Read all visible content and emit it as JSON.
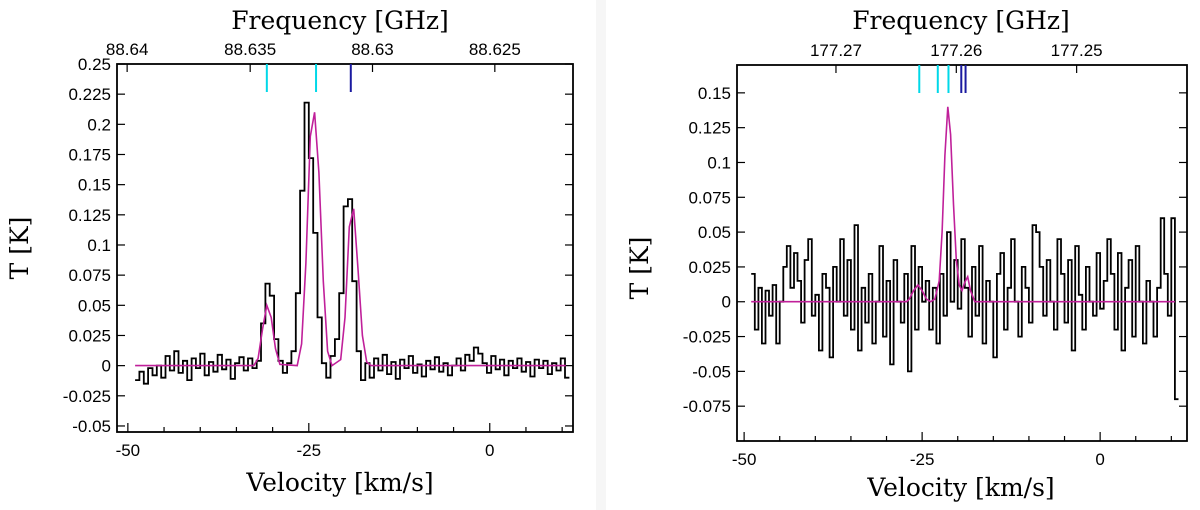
{
  "chart_data": [
    {
      "type": "line",
      "title": "",
      "xlabel": "Velocity [km/s]",
      "ylabel": "T [K]",
      "x2label": "Frequency [GHz]",
      "xlim": [
        -51.5,
        11.5
      ],
      "ylim": [
        -0.055,
        0.25
      ],
      "x_ticks": [
        -50,
        -25,
        0
      ],
      "x_tick_labels": [
        "-50",
        "-25",
        "0"
      ],
      "y_ticks": [
        -0.05,
        -0.025,
        0,
        0.025,
        0.05,
        0.075,
        0.1,
        0.125,
        0.15,
        0.175,
        0.2,
        0.225,
        0.25
      ],
      "y_tick_labels": [
        "-0.05",
        "-0.025",
        "0",
        "0.025",
        "0.05",
        "0.075",
        "0.1",
        "0.125",
        "0.15",
        "0.175",
        "0.2",
        "0.225",
        "0.25"
      ],
      "x2_ticks": [
        -50.1,
        -33.1,
        -16.2,
        0.7
      ],
      "x2_tick_labels": [
        "88.64",
        "88.635",
        "88.63",
        "88.625"
      ],
      "line_markers": [
        {
          "x": -30.8,
          "color": "#00d8e8"
        },
        {
          "x": -24.0,
          "color": "#00d8e8"
        },
        {
          "x": -19.2,
          "color": "#1a1aa0"
        }
      ],
      "series": [
        {
          "color": "#000000",
          "style": "steps",
          "x": [
            -49.0,
            -48.4,
            -47.8,
            -47.2,
            -46.6,
            -46.0,
            -45.4,
            -44.8,
            -44.2,
            -43.6,
            -43.0,
            -42.4,
            -41.8,
            -41.2,
            -40.6,
            -40.0,
            -39.4,
            -38.8,
            -38.2,
            -37.6,
            -37.0,
            -36.4,
            -35.8,
            -35.2,
            -34.6,
            -34.0,
            -33.4,
            -32.8,
            -32.2,
            -31.6,
            -31.0,
            -30.4,
            -29.8,
            -29.2,
            -28.6,
            -28.0,
            -27.4,
            -26.8,
            -26.2,
            -25.6,
            -25.0,
            -24.4,
            -23.8,
            -23.2,
            -22.6,
            -22.0,
            -21.4,
            -20.8,
            -20.2,
            -19.6,
            -19.0,
            -18.4,
            -17.8,
            -17.2,
            -16.6,
            -16.0,
            -15.4,
            -14.8,
            -14.2,
            -13.6,
            -13.0,
            -12.4,
            -11.8,
            -11.2,
            -10.6,
            -10.0,
            -9.4,
            -8.8,
            -8.2,
            -7.6,
            -7.0,
            -6.4,
            -5.8,
            -5.2,
            -4.6,
            -4.0,
            -3.4,
            -2.8,
            -2.2,
            -1.6,
            -1.0,
            -0.4,
            0.2,
            0.8,
            1.4,
            2.0,
            2.6,
            3.2,
            3.8,
            4.4,
            5.0,
            5.6,
            6.2,
            6.8,
            7.4,
            8.0,
            8.6,
            9.2,
            9.8,
            10.4
          ],
          "y": [
            -0.012,
            -0.005,
            -0.015,
            -0.002,
            -0.008,
            0.0,
            -0.01,
            0.008,
            -0.004,
            0.012,
            -0.006,
            0.004,
            -0.012,
            0.006,
            -0.002,
            0.01,
            -0.008,
            0.003,
            -0.005,
            0.009,
            -0.003,
            0.005,
            -0.011,
            0.002,
            0.007,
            -0.004,
            0.006,
            -0.002,
            0.004,
            0.035,
            0.068,
            0.058,
            0.022,
            0.004,
            -0.006,
            0.002,
            0.012,
            0.06,
            0.145,
            0.218,
            0.172,
            0.11,
            0.04,
            0.002,
            -0.01,
            0.008,
            0.022,
            0.06,
            0.132,
            0.138,
            0.07,
            0.012,
            -0.012,
            0.002,
            -0.01,
            0.006,
            -0.004,
            0.009,
            -0.007,
            0.003,
            -0.011,
            0.005,
            -0.002,
            0.008,
            -0.006,
            0.001,
            -0.009,
            0.004,
            -0.003,
            0.007,
            -0.005,
            0.002,
            -0.008,
            0.0,
            0.006,
            -0.004,
            0.009,
            0.004,
            0.015,
            0.01,
            0.002,
            -0.006,
            0.008,
            -0.003,
            0.005,
            -0.008,
            0.004,
            -0.002,
            0.006,
            -0.005,
            0.003,
            -0.009,
            0.005,
            -0.002,
            0.004,
            -0.007,
            0.002,
            -0.004,
            0.006,
            -0.01
          ]
        },
        {
          "color": "#c0209a",
          "style": "line",
          "x": [
            -49.0,
            -32.6,
            -32.0,
            -31.4,
            -30.8,
            -30.2,
            -29.6,
            -29.0,
            -26.6,
            -26.0,
            -25.4,
            -24.8,
            -24.2,
            -23.6,
            -23.0,
            -22.4,
            -21.8,
            -20.6,
            -20.0,
            -19.4,
            -18.8,
            -18.2,
            -17.6,
            -17.0,
            -16.4,
            10.5
          ],
          "y": [
            0.0,
            0.0,
            0.006,
            0.03,
            0.05,
            0.04,
            0.014,
            0.001,
            0.0,
            0.018,
            0.085,
            0.19,
            0.21,
            0.16,
            0.07,
            0.012,
            0.0,
            0.005,
            0.04,
            0.115,
            0.13,
            0.08,
            0.025,
            0.003,
            0.0,
            0.0
          ]
        }
      ]
    },
    {
      "type": "line",
      "title": "",
      "xlabel": "Velocity [km/s]",
      "ylabel": "T [K]",
      "x2label": "Frequency [GHz]",
      "xlim": [
        -51.0,
        12.2
      ],
      "ylim": [
        -0.1,
        0.17
      ],
      "x_ticks": [
        -50,
        -25,
        0
      ],
      "x_tick_labels": [
        "-50",
        "-25",
        "0"
      ],
      "y_ticks": [
        -0.075,
        -0.05,
        -0.025,
        0,
        0.025,
        0.05,
        0.075,
        0.1,
        0.125,
        0.15
      ],
      "y_tick_labels": [
        "-0.075",
        "-0.05",
        "-0.025",
        "0",
        "0.025",
        "0.05",
        "0.075",
        "0.1",
        "0.125",
        "0.15"
      ],
      "x2_ticks": [
        -37.1,
        -20.2,
        -3.3
      ],
      "x2_tick_labels": [
        "177.27",
        "177.26",
        "177.25"
      ],
      "line_markers": [
        {
          "x": -25.4,
          "color": "#00d8e8"
        },
        {
          "x": -22.8,
          "color": "#00d8e8"
        },
        {
          "x": -21.3,
          "color": "#00d8e8"
        },
        {
          "x": -19.5,
          "color": "#1a1aa0"
        },
        {
          "x": -18.9,
          "color": "#1a1aa0"
        }
      ],
      "series": [
        {
          "color": "#000000",
          "style": "steps",
          "x": [
            -49.0,
            -48.5,
            -48.0,
            -47.5,
            -47.0,
            -46.5,
            -46.0,
            -45.5,
            -45.0,
            -44.5,
            -44.0,
            -43.5,
            -43.0,
            -42.5,
            -42.0,
            -41.5,
            -41.0,
            -40.5,
            -40.0,
            -39.5,
            -39.0,
            -38.5,
            -38.0,
            -37.5,
            -37.0,
            -36.5,
            -36.0,
            -35.5,
            -35.0,
            -34.5,
            -34.0,
            -33.5,
            -33.0,
            -32.5,
            -32.0,
            -31.5,
            -31.0,
            -30.5,
            -30.0,
            -29.5,
            -29.0,
            -28.5,
            -28.0,
            -27.5,
            -27.0,
            -26.5,
            -26.0,
            -25.5,
            -25.0,
            -24.5,
            -24.0,
            -23.5,
            -23.0,
            -22.5,
            -22.0,
            -21.5,
            -21.0,
            -20.5,
            -20.0,
            -19.5,
            -19.0,
            -18.5,
            -18.0,
            -17.5,
            -17.0,
            -16.5,
            -16.0,
            -15.5,
            -15.0,
            -14.5,
            -14.0,
            -13.5,
            -13.0,
            -12.5,
            -12.0,
            -11.5,
            -11.0,
            -10.5,
            -10.0,
            -9.5,
            -9.0,
            -8.5,
            -8.0,
            -7.5,
            -7.0,
            -6.5,
            -6.0,
            -5.5,
            -5.0,
            -4.5,
            -4.0,
            -3.5,
            -3.0,
            -2.5,
            -2.0,
            -1.5,
            -1.0,
            -0.5,
            0.0,
            0.5,
            1.0,
            1.5,
            2.0,
            2.5,
            3.0,
            3.5,
            4.0,
            4.5,
            5.0,
            5.5,
            6.0,
            6.5,
            7.0,
            7.5,
            8.0,
            8.5,
            9.0,
            9.5,
            10.0,
            10.5
          ],
          "y": [
            0.02,
            -0.02,
            0.01,
            -0.03,
            0.008,
            -0.01,
            0.012,
            -0.03,
            0.0,
            0.025,
            0.04,
            0.01,
            0.035,
            0.015,
            -0.015,
            0.03,
            0.045,
            -0.01,
            0.005,
            -0.035,
            0.02,
            0.01,
            -0.04,
            0.025,
            0.0,
            0.045,
            -0.01,
            0.03,
            -0.02,
            0.055,
            -0.035,
            0.01,
            -0.015,
            0.02,
            -0.03,
            0.0,
            0.04,
            -0.025,
            0.015,
            -0.045,
            0.03,
            0.0,
            -0.015,
            0.02,
            -0.05,
            0.04,
            -0.02,
            0.025,
            0.0,
            0.015,
            -0.02,
            0.01,
            -0.03,
            0.02,
            -0.01,
            0.05,
            0.0,
            0.03,
            -0.005,
            0.045,
            0.01,
            -0.025,
            0.025,
            -0.01,
            0.04,
            -0.03,
            0.015,
            0.0,
            -0.04,
            0.02,
            0.035,
            -0.02,
            0.01,
            0.045,
            0.0,
            -0.025,
            0.025,
            0.01,
            -0.015,
            0.055,
            0.05,
            0.025,
            -0.01,
            0.03,
            0.0,
            -0.02,
            0.045,
            0.02,
            -0.015,
            0.03,
            -0.035,
            0.04,
            0.005,
            -0.02,
            0.025,
            0.0,
            -0.01,
            0.035,
            -0.005,
            0.015,
            0.045,
            0.02,
            -0.02,
            0.035,
            -0.035,
            0.01,
            0.03,
            -0.025,
            0.04,
            0.0,
            -0.03,
            0.015,
            0.0,
            -0.025,
            0.01,
            0.06,
            0.02,
            -0.01,
            0.06,
            -0.07
          ]
        },
        {
          "color": "#c0209a",
          "style": "line",
          "x": [
            -49.0,
            -27.2,
            -26.8,
            -26.2,
            -25.6,
            -25.0,
            -24.4,
            -23.8,
            -23.2,
            -22.6,
            -22.2,
            -21.8,
            -21.4,
            -21.0,
            -20.6,
            -20.2,
            -19.8,
            -19.4,
            -19.0,
            -18.6,
            -18.2,
            -17.6,
            10.5
          ],
          "y": [
            0.0,
            0.0,
            0.002,
            0.008,
            0.012,
            0.008,
            0.002,
            0.0,
            0.002,
            0.015,
            0.05,
            0.105,
            0.14,
            0.12,
            0.07,
            0.03,
            0.012,
            0.008,
            0.014,
            0.018,
            0.008,
            0.0,
            0.0
          ]
        }
      ]
    }
  ]
}
